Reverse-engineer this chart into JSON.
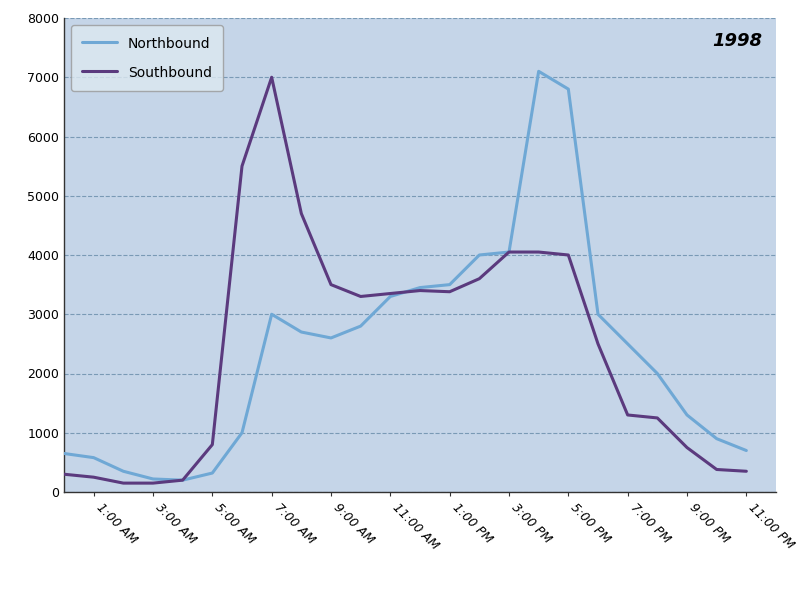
{
  "year_label": "1998",
  "x_labels": [
    "1:00 AM",
    "3:00 AM",
    "5:00 AM",
    "7:00 AM",
    "9:00 AM",
    "11:00 AM",
    "1:00 PM",
    "3:00 PM",
    "5:00 PM",
    "7:00 PM",
    "9:00 PM",
    "11:00 PM"
  ],
  "x_hours": [
    1,
    3,
    5,
    7,
    9,
    11,
    13,
    15,
    17,
    19,
    21,
    23
  ],
  "northbound": {
    "hours": [
      0,
      1,
      2,
      3,
      4,
      5,
      6,
      7,
      8,
      9,
      10,
      11,
      12,
      13,
      14,
      15,
      16,
      17,
      18,
      19,
      20,
      21,
      22,
      23
    ],
    "values": [
      650,
      580,
      350,
      220,
      200,
      320,
      1000,
      3000,
      2700,
      2600,
      2800,
      3300,
      3450,
      3500,
      4000,
      4050,
      7100,
      6800,
      3000,
      2500,
      2000,
      1300,
      900,
      700
    ]
  },
  "southbound": {
    "hours": [
      0,
      1,
      2,
      3,
      4,
      5,
      6,
      7,
      8,
      9,
      10,
      11,
      12,
      13,
      14,
      15,
      16,
      17,
      18,
      19,
      20,
      21,
      22,
      23
    ],
    "values": [
      300,
      250,
      150,
      150,
      200,
      800,
      5500,
      7000,
      4700,
      3500,
      3300,
      3350,
      3400,
      3380,
      3600,
      4050,
      4050,
      4000,
      2500,
      1300,
      1250,
      750,
      380,
      350
    ]
  },
  "northbound_color": "#6fa8d5",
  "southbound_color": "#5b3a7e",
  "background_color": "#c5d5e8",
  "figure_facecolor": "#ffffff",
  "ylim": [
    0,
    8000
  ],
  "ytick_step": 1000,
  "line_width": 2.2,
  "figsize": [
    8.0,
    6.0
  ],
  "dpi": 100
}
